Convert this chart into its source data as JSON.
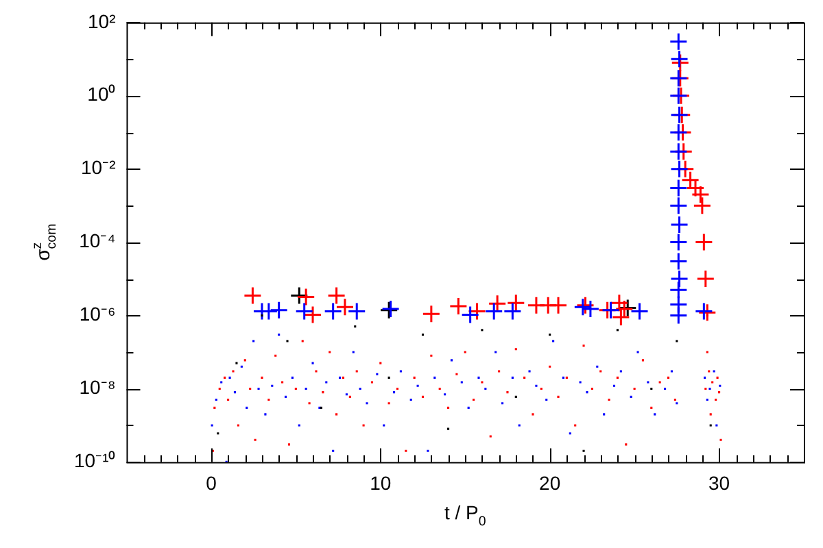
{
  "chart_data": {
    "type": "scatter",
    "xlabel": "t / P$_{0}$",
    "ylabel": "σ$^{z}$$_{com}$",
    "log": "y",
    "xlim": [
      -5,
      35
    ],
    "xticks": [
      {
        "value": -4,
        "label": null
      },
      {
        "value": -3,
        "label": null
      },
      {
        "value": -2,
        "label": null
      },
      {
        "value": -1,
        "label": null
      },
      0,
      {
        "value": 1,
        "label": null
      },
      {
        "value": 2,
        "label": null
      },
      {
        "value": 3,
        "label": null
      },
      {
        "value": 4,
        "label": null
      },
      {
        "value": 5,
        "label": null
      },
      {
        "value": 6,
        "label": null
      },
      {
        "value": 7,
        "label": null
      },
      {
        "value": 8,
        "label": null
      },
      {
        "value": 9,
        "label": null
      },
      10,
      {
        "value": 11,
        "label": null
      },
      {
        "value": 12,
        "label": null
      },
      {
        "value": 13,
        "label": null
      },
      {
        "value": 14,
        "label": null
      },
      {
        "value": 15,
        "label": null
      },
      {
        "value": 16,
        "label": null
      },
      {
        "value": 17,
        "label": null
      },
      {
        "value": 18,
        "label": null
      },
      {
        "value": 19,
        "label": null
      },
      20,
      {
        "value": 21,
        "label": null
      },
      {
        "value": 22,
        "label": null
      },
      {
        "value": 23,
        "label": null
      },
      {
        "value": 24,
        "label": null
      },
      {
        "value": 25,
        "label": null
      },
      {
        "value": 26,
        "label": null
      },
      {
        "value": 27,
        "label": null
      },
      {
        "value": 28,
        "label": null
      },
      {
        "value": 29,
        "label": null
      },
      30,
      {
        "value": 31,
        "label": null
      },
      {
        "value": 32,
        "label": null
      },
      {
        "value": 33,
        "label": null
      },
      {
        "value": 34,
        "label": null
      }
    ],
    "ylim": [
      1e-10,
      100
    ],
    "yticks": [
      {
        "value": 1e-10,
        "label": "10⁻¹⁰"
      },
      {
        "value": 1e-09,
        "label": null
      },
      {
        "value": 1e-08,
        "label": "10⁻⁸"
      },
      {
        "value": 1e-07,
        "label": null
      },
      {
        "value": 1e-06,
        "label": "10⁻⁶"
      },
      {
        "value": 1e-05,
        "label": null
      },
      {
        "value": 0.0001,
        "label": "10⁻⁴"
      },
      {
        "value": 0.001,
        "label": null
      },
      {
        "value": 0.01,
        "label": "10⁻²"
      },
      {
        "value": 0.1,
        "label": null
      },
      {
        "value": 1,
        "label": "10⁰"
      },
      {
        "value": 10,
        "label": null
      },
      {
        "value": 100,
        "label": "10²"
      }
    ],
    "series": [
      {
        "color": "#000000",
        "marker": "square",
        "x": [
          0.4,
          1.5,
          3.0,
          4.5,
          6.5,
          8.5,
          10.5,
          12.5,
          14,
          16,
          18,
          20,
          22,
          24,
          26,
          27.5,
          29.5
        ],
        "values": [
          6e-10,
          5e-08,
          1e-06,
          2e-07,
          3e-09,
          5e-07,
          2e-08,
          3e-07,
          8e-10,
          4e-07,
          6e-09,
          3e-07,
          2e-10,
          4e-07,
          1e-08,
          2e-07,
          1e-09
        ]
      },
      {
        "color": "#0000ff",
        "marker": "square",
        "x": [
          0.05,
          0.3,
          0.6,
          0.9,
          1.1,
          1.4,
          1.8,
          2.1,
          2.5,
          2.8,
          3.2,
          3.6,
          4.0,
          4.4,
          4.8,
          5.2,
          5.6,
          6.0,
          6.4,
          6.8,
          7.2,
          7.6,
          8.0,
          8.4,
          8.8,
          9.2,
          9.8,
          10.2,
          10.8,
          11.2,
          11.8,
          12.2,
          12.8,
          13.2,
          13.8,
          14.2,
          14.8,
          15.2,
          15.8,
          16.2,
          16.8,
          17.2,
          17.8,
          18.2,
          18.8,
          19.2,
          19.8,
          20.2,
          20.8,
          21.2,
          21.8,
          22.2,
          22.8,
          23.2,
          23.8,
          24.2,
          24.8,
          25.2,
          25.8,
          26.2,
          26.8,
          27.2,
          27.5,
          29.15,
          29.3,
          29.45,
          29.7,
          29.85,
          30.05
        ],
        "values": [
          1e-09,
          5e-09,
          1.5e-08,
          1e-10,
          2e-08,
          8e-09,
          4e-08,
          3e-09,
          2e-07,
          1e-08,
          2e-09,
          1.2e-08,
          3e-07,
          6e-09,
          2e-08,
          1e-09,
          1e-08,
          5e-08,
          3e-09,
          1.5e-08,
          2e-10,
          2e-08,
          7e-09,
          1e-07,
          1e-08,
          4e-09,
          2.5e-08,
          1e-09,
          8e-09,
          3e-08,
          5e-09,
          1.2e-08,
          2e-10,
          2e-08,
          7e-09,
          6e-08,
          1.5e-08,
          3e-09,
          2e-08,
          1e-08,
          1e-07,
          4e-09,
          2e-08,
          1e-09,
          3e-08,
          1.2e-08,
          5e-09,
          2e-07,
          2e-08,
          6e-10,
          1.5e-08,
          8e-09,
          4e-08,
          2e-09,
          1.2e-08,
          3e-08,
          6e-09,
          1e-07,
          1.5e-08,
          2e-09,
          1e-08,
          3e-08,
          4e-09,
          2e-08,
          5e-09,
          1e-08,
          3e-08,
          1e-09,
          1.2e-08
        ]
      },
      {
        "color": "#ff0000",
        "marker": "square",
        "x": [
          0.1,
          0.2,
          0.5,
          0.8,
          1.0,
          1.3,
          1.6,
          2.0,
          2.3,
          2.6,
          3.0,
          3.4,
          3.8,
          4.2,
          4.6,
          5.0,
          5.4,
          5.8,
          6.2,
          6.6,
          7.0,
          7.4,
          7.8,
          8.2,
          8.6,
          9.0,
          9.5,
          10,
          10.5,
          11,
          11.5,
          12,
          12.5,
          13,
          13.5,
          14,
          14.5,
          15,
          15.5,
          16,
          16.5,
          17,
          17.5,
          18,
          18.5,
          19,
          19.5,
          20,
          20.5,
          21,
          21.5,
          22,
          22.5,
          23,
          23.5,
          24,
          24.5,
          25,
          25.5,
          26,
          26.5,
          27,
          27.4,
          29.3,
          29.3,
          29.2,
          29.4,
          29.5,
          29.6,
          29.8,
          29.9,
          30.0,
          30.1
        ],
        "values": [
          2e-10,
          3e-09,
          1e-08,
          2e-08,
          5e-09,
          3e-08,
          1e-09,
          6e-08,
          1e-08,
          4e-10,
          2e-08,
          5e-09,
          8e-08,
          1.5e-08,
          3e-10,
          1e-08,
          2e-07,
          4e-09,
          3e-08,
          8e-09,
          1e-07,
          2e-09,
          2e-08,
          6e-09,
          3e-08,
          1e-09,
          1.5e-08,
          5e-08,
          4e-09,
          1e-08,
          2e-10,
          2e-08,
          6e-09,
          8e-08,
          1e-08,
          3e-09,
          2.5e-08,
          1e-07,
          5e-09,
          1.5e-08,
          5e-10,
          3e-08,
          8e-09,
          1.2e-07,
          2e-08,
          2e-09,
          1e-08,
          4e-08,
          6e-09,
          2e-08,
          1e-09,
          1.5e-07,
          1e-08,
          3e-08,
          5e-09,
          2e-08,
          3e-10,
          1e-08,
          6e-08,
          3e-09,
          1.5e-08,
          2e-08,
          5e-09,
          1e-06,
          1e-07,
          1e-08,
          3e-08,
          2e-09,
          1.5e-08,
          5e-09,
          2e-08,
          8e-09,
          4e-10
        ]
      },
      {
        "color": "#0000ff",
        "marker": "cross",
        "x": [
          3.0,
          3.4,
          4.0,
          5.5,
          7.2,
          8.6,
          10.6,
          15.3,
          16.7,
          17.8,
          21.95,
          22.4,
          23.6,
          25.3,
          29.1,
          27.6,
          27.6,
          27.6,
          27.65,
          27.6,
          27.6,
          27.65,
          27.6,
          27.6,
          27.65,
          27.6,
          27.6,
          27.65,
          27.6,
          27.6,
          27.65,
          27.6
        ],
        "values": [
          1.3e-06,
          1.3e-06,
          1.4e-06,
          1.3e-06,
          1.3e-06,
          1.3e-06,
          1.5e-06,
          1.05e-06,
          1.3e-06,
          1.3e-06,
          1.7e-06,
          1.5e-06,
          1.4e-06,
          1.3e-06,
          1.3e-06,
          1e-06,
          2e-06,
          5e-06,
          1e-05,
          3e-05,
          0.0001,
          0.0003,
          0.001,
          0.003,
          0.01,
          0.03,
          0.1,
          0.3,
          1,
          3,
          10,
          30
        ]
      },
      {
        "color": "#ff0000",
        "marker": "cross",
        "x": [
          2.45,
          5.6,
          6.0,
          7.4,
          7.9,
          13.0,
          14.6,
          15.7,
          16.9,
          18.0,
          19.2,
          19.9,
          20.5,
          22.1,
          23.4,
          24.1,
          24.2,
          24.4,
          27.7,
          27.7,
          27.75,
          27.8,
          27.85,
          27.9,
          28.0,
          28.3,
          28.6,
          28.9,
          29.0,
          29.1,
          29.2,
          29.3
        ],
        "values": [
          3.5e-06,
          3.2e-06,
          1.05e-06,
          3.5e-06,
          1.7e-06,
          1.1e-06,
          1.8e-06,
          1.3e-06,
          2.1e-06,
          2.2e-06,
          1.9e-06,
          1.9e-06,
          1.9e-06,
          1.9e-06,
          1.4e-06,
          2.2e-06,
          9e-07,
          1.5e-06,
          8,
          3,
          1,
          0.3,
          0.1,
          0.03,
          0.01,
          0.005,
          0.003,
          0.002,
          0.001,
          0.0001,
          1e-05,
          1.2e-06
        ]
      },
      {
        "color": "#000000",
        "marker": "cross",
        "x": [
          5.2,
          10.5,
          24.6
        ],
        "values": [
          3.5e-06,
          1.4e-06,
          1.6e-06
        ]
      }
    ]
  }
}
